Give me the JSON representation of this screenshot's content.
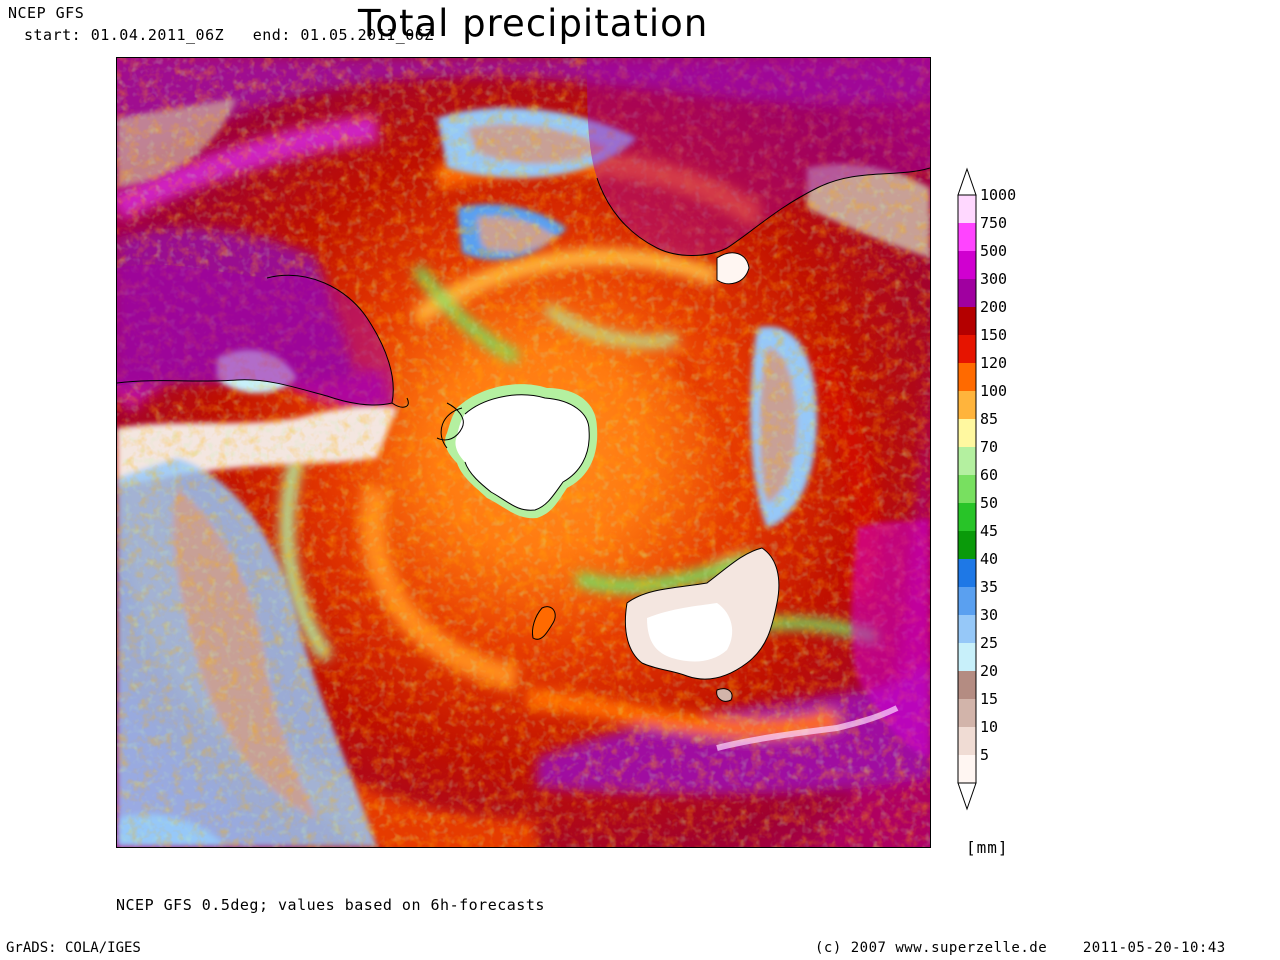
{
  "header": {
    "source": "NCEP GFS",
    "time_range": "start: 01.04.2011_06Z   end: 01.05.2011_06Z"
  },
  "title": "Total precipitation",
  "map": {
    "projection": "south-polar stereographic",
    "variable": "total precipitation"
  },
  "legend": {
    "levels": [
      {
        "label": "1000",
        "color": "#ffd8ff"
      },
      {
        "label": "750",
        "color": "#ff44ff"
      },
      {
        "label": "500",
        "color": "#d000d0"
      },
      {
        "label": "300",
        "color": "#a000a0"
      },
      {
        "label": "200",
        "color": "#b40000"
      },
      {
        "label": "150",
        "color": "#e61400"
      },
      {
        "label": "120",
        "color": "#ff6a00"
      },
      {
        "label": "100",
        "color": "#ffb43c"
      },
      {
        "label": "85",
        "color": "#fff8a0"
      },
      {
        "label": "70",
        "color": "#b4f0a0"
      },
      {
        "label": "60",
        "color": "#78e060"
      },
      {
        "label": "50",
        "color": "#28c428"
      },
      {
        "label": "45",
        "color": "#0a9a0a"
      },
      {
        "label": "40",
        "color": "#1e78e6"
      },
      {
        "label": "35",
        "color": "#5aa0f0"
      },
      {
        "label": "30",
        "color": "#96c8f8"
      },
      {
        "label": "25",
        "color": "#c8f0fa"
      },
      {
        "label": "20",
        "color": "#b48c82"
      },
      {
        "label": "15",
        "color": "#d2b4aa"
      },
      {
        "label": "10",
        "color": "#f0dcd4"
      },
      {
        "label": "5",
        "color": "#fff6f2"
      }
    ],
    "units": "[mm]"
  },
  "footnote": "NCEP GFS 0.5deg; values based on 6h-forecasts",
  "footer": {
    "software": "GrADS: COLA/IGES",
    "copyright": "(c) 2007 www.superzelle.de    2011-05-20-10:43"
  }
}
